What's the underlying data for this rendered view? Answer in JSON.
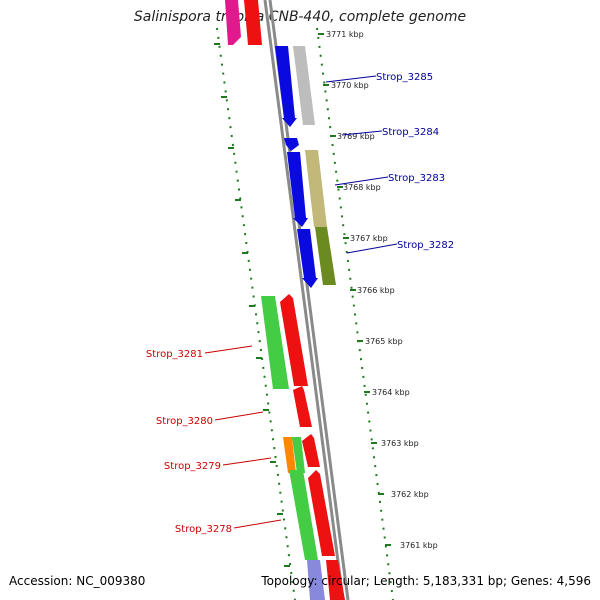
{
  "title": "Salinispora tropica CNB-440, complete genome",
  "footer": {
    "accession": "Accession: NC_009380",
    "topology": "Topology: circular; Length: 5,183,331 bp; Genes: 4,596"
  },
  "colors": {
    "backbone": "#8a8a8a",
    "ruler": "#1f7a1f",
    "label_forward": "#00009c",
    "label_reverse": "#cc0000"
  },
  "ruler_ticks": [
    "3771 kbp",
    "3770 kbp",
    "3769 kbp",
    "3768 kbp",
    "3767 kbp",
    "3766 kbp",
    "3765 kbp",
    "3764 kbp",
    "3763 kbp",
    "3762 kbp",
    "3761 kbp"
  ],
  "gene_labels": [
    {
      "id": "Strop_3285",
      "side": "right"
    },
    {
      "id": "Strop_3284",
      "side": "right"
    },
    {
      "id": "Strop_3283",
      "side": "right"
    },
    {
      "id": "Strop_3282",
      "side": "right"
    },
    {
      "id": "Strop_3281",
      "side": "left"
    },
    {
      "id": "Strop_3280",
      "side": "left"
    },
    {
      "id": "Strop_3279",
      "side": "left"
    },
    {
      "id": "Strop_3278",
      "side": "left"
    }
  ]
}
